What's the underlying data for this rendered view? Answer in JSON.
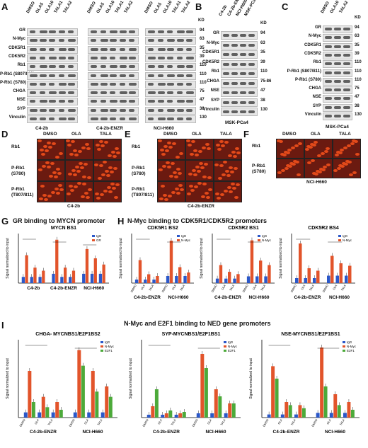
{
  "panels": [
    "A",
    "B",
    "C",
    "D",
    "E",
    "F",
    "G",
    "H",
    "I"
  ],
  "A": {
    "rows": [
      "GR",
      "N-Myc",
      "CDK5R1",
      "CDK5R2",
      "Rb1",
      "P-Rb1 (S807/811)",
      "P-Rb1 (S780)",
      "CHGA",
      "NSE",
      "SYP",
      "Vinculin"
    ],
    "kd": [
      "94",
      "63",
      "35",
      "39",
      "110",
      "110",
      "110",
      "75",
      "47",
      "38",
      "130"
    ],
    "lanes": [
      "DMSO",
      "OLA5",
      "OLA10",
      "TALA1",
      "TALA2"
    ],
    "groups": [
      "C4-2b",
      "C4-2b-ENZR",
      "NCI-H660"
    ],
    "kd_header": "KD"
  },
  "B": {
    "lanes": [
      "C4-2b",
      "C4-2b-ENZR",
      "NCI-H660",
      "MSK-PCa4"
    ],
    "rows": [
      "GR",
      "N-Myc",
      "CDK5R1",
      "CDK5R2",
      "Rb1",
      "CHGA",
      "NSE",
      "SYP",
      "Vinculin"
    ],
    "kd": [
      "94",
      "63",
      "35",
      "39",
      "110",
      "75-86",
      "47",
      "38",
      "130"
    ],
    "caption": "MSK-PCa4",
    "kd_header": "KD"
  },
  "C": {
    "lanes": [
      "DMSO",
      "OLA10",
      "TALA2"
    ],
    "rows": [
      "GR",
      "N-Myc",
      "CDK5R1",
      "CDK5R2",
      "Rb1",
      "P-Rb1 (S807/811)",
      "P-Rb1 (S780)",
      "CHGA",
      "NSE",
      "SYP",
      "Vinculin"
    ],
    "kd": [
      "94",
      "63",
      "35",
      "39",
      "110",
      "110",
      "110",
      "75",
      "47",
      "38",
      "130"
    ],
    "caption": "MSK-PCa4",
    "kd_header": "KD"
  },
  "D": {
    "cols": [
      "DMSO",
      "OLA",
      "TALA"
    ],
    "rows": [
      "Rb1",
      "P-Rb1\n(S780)",
      "P-Rb1\n(T807/811)"
    ],
    "caption": "C4-2b"
  },
  "E": {
    "cols": [
      "DMSO",
      "OLA",
      "TALA"
    ],
    "rows": [
      "Rb1",
      "P-Rb1\n(S780)",
      "P-Rb1\n(T807/811)"
    ],
    "caption": "C4-2b-ENZR"
  },
  "F": {
    "cols": [
      "DMSO",
      "OLA",
      "TALA"
    ],
    "rows": [
      "Rb1",
      "P-Rb1\n(S780)"
    ],
    "caption": "NCI-H660"
  },
  "G": {
    "heading": "GR binding to MYCN promoter",
    "chart_title": "MYCN BS1"
  },
  "H": {
    "heading": "N-Myc binding to CDK5R1/CDK5R2 promoters",
    "chart_titles": [
      "CDK5R1 BS2",
      "CDK5R2 BS1",
      "CDK5R2 BS4"
    ]
  },
  "I": {
    "heading": "N-Myc and E2F1 binding to NED gene promoters",
    "chart_titles": [
      "CHGA- MYCNBS1/E2F1BS2",
      "SYP-MYCNBS1/E2F1BS1",
      "NSE-MYCNBS1/E2F1BS1"
    ]
  },
  "legend": {
    "IgG": "IgG",
    "GR": "GR",
    "NMyc": "N-Myc",
    "E2F1": "E2F1"
  },
  "ylabel": "Signal normalized to input",
  "xcats": [
    "DMSO",
    "OLA",
    "TALA"
  ],
  "chart_data": [
    {
      "type": "bar",
      "title": "MYCN BS1",
      "groups": [
        "C4-2b",
        "C4-2b-ENZR",
        "NCI-H660"
      ],
      "series": [
        {
          "name": "IgG",
          "values": [
            0.2,
            0.2,
            0.2,
            0.3,
            0.2,
            0.2,
            0.3,
            0.3,
            0.3
          ]
        },
        {
          "name": "GR",
          "values": [
            0.9,
            0.5,
            0.4,
            1.4,
            0.5,
            0.4,
            1.1,
            0.8,
            0.6
          ]
        }
      ]
    },
    {
      "type": "bar",
      "title": "CDK5R1 BS2",
      "groups": [
        "C4-2b-ENZR",
        "NCI-H660"
      ],
      "series": [
        {
          "name": "IgG",
          "values": [
            0.1,
            0.1,
            0.1,
            0.2,
            0.2,
            0.2
          ]
        },
        {
          "name": "N-Myc",
          "values": [
            0.65,
            0.25,
            0.2,
            1.2,
            0.45,
            0.3
          ]
        }
      ]
    },
    {
      "type": "bar",
      "title": "CDK5R2 BS1",
      "groups": [
        "C4-2b-ENZR",
        "NCI-H660"
      ],
      "series": [
        {
          "name": "IgG",
          "values": [
            0.1,
            0.1,
            0.1,
            0.15,
            0.15,
            0.15
          ]
        },
        {
          "name": "N-Myc",
          "values": [
            0.4,
            0.25,
            0.2,
            0.95,
            0.5,
            0.4
          ]
        }
      ]
    },
    {
      "type": "bar",
      "title": "CDK5R2 BS4",
      "groups": [
        "C4-2b-ENZR",
        "NCI-H660"
      ],
      "series": [
        {
          "name": "IgG",
          "values": [
            0.1,
            0.1,
            0.1,
            0.15,
            0.15,
            0.15
          ]
        },
        {
          "name": "N-Myc",
          "values": [
            0.8,
            0.3,
            0.25,
            0.55,
            0.4,
            0.35
          ]
        }
      ]
    },
    {
      "type": "bar",
      "title": "CHGA- MYCNBS1/E2F1BS2",
      "groups": [
        "C4-2b-ENZR",
        "NCI-H660"
      ],
      "series": [
        {
          "name": "IgG",
          "values": [
            0.1,
            0.1,
            0.1,
            0.1,
            0.1,
            0.1
          ]
        },
        {
          "name": "N-Myc",
          "values": [
            0.9,
            0.4,
            0.3,
            1.3,
            0.9,
            0.6
          ]
        },
        {
          "name": "E2F1",
          "values": [
            0.3,
            0.2,
            0.15,
            1.0,
            0.5,
            0.4
          ]
        }
      ]
    },
    {
      "type": "bar",
      "title": "SYP-MYCNBS1/E2F1BS1",
      "groups": [
        "C4-2b-ENZR",
        "NCI-H660"
      ],
      "series": [
        {
          "name": "IgG",
          "values": [
            0.02,
            0.02,
            0.02,
            0.03,
            0.03,
            0.03
          ]
        },
        {
          "name": "N-Myc",
          "values": [
            0.08,
            0.03,
            0.03,
            0.45,
            0.2,
            0.1
          ]
        },
        {
          "name": "E2F1",
          "values": [
            0.2,
            0.05,
            0.04,
            0.35,
            0.15,
            0.1
          ]
        }
      ]
    },
    {
      "type": "bar",
      "title": "NSE-MYCNBS1/E2F1BS1",
      "groups": [
        "C4-2b-ENZR",
        "NCI-H660"
      ],
      "series": [
        {
          "name": "IgG",
          "values": [
            0.02,
            0.02,
            0.02,
            0.03,
            0.03,
            0.03
          ]
        },
        {
          "name": "N-Myc",
          "values": [
            0.33,
            0.1,
            0.08,
            0.45,
            0.15,
            0.1
          ]
        },
        {
          "name": "E2F1",
          "values": [
            0.25,
            0.08,
            0.06,
            0.2,
            0.08,
            0.05
          ]
        }
      ]
    }
  ]
}
